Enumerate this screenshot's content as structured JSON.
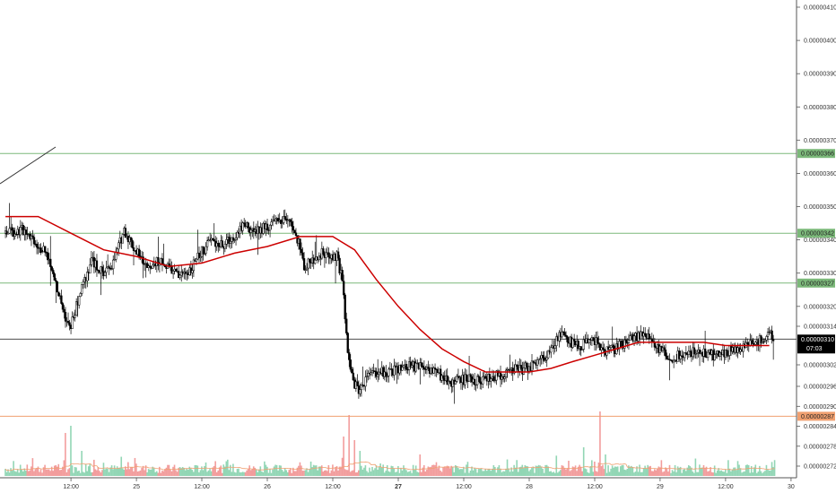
{
  "chart_data": {
    "type": "candlestick",
    "y_axis": {
      "ticks": [
        {
          "value": 410,
          "label": "0.00000410"
        },
        {
          "value": 400,
          "label": "0.00000400"
        },
        {
          "value": 390,
          "label": "0.00000390"
        },
        {
          "value": 380,
          "label": "0.00000380"
        },
        {
          "value": 370,
          "label": "0.00000370"
        },
        {
          "value": 360,
          "label": "0.00000360"
        },
        {
          "value": 350,
          "label": "0.00000350"
        },
        {
          "value": 340,
          "label": "0.00000340"
        },
        {
          "value": 330,
          "label": "0.00000330"
        },
        {
          "value": 320,
          "label": "0.00000320"
        },
        {
          "value": 314,
          "label": "0.00000314"
        },
        {
          "value": 302,
          "label": "0.00000302"
        },
        {
          "value": 296,
          "label": "0.00000296"
        },
        {
          "value": 290,
          "label": "0.00000290"
        },
        {
          "value": 284,
          "label": "0.00000284"
        },
        {
          "value": 278,
          "label": "0.00000278"
        },
        {
          "value": 272,
          "label": "0.00000272"
        }
      ],
      "unit_note": "values in units of 1e-8"
    },
    "x_axis": {
      "ticks": [
        {
          "t": 12,
          "label": "12:00",
          "bold": false
        },
        {
          "t": 24,
          "label": "25",
          "bold": false
        },
        {
          "t": 36,
          "label": "12:00",
          "bold": false
        },
        {
          "t": 48,
          "label": "26",
          "bold": false
        },
        {
          "t": 60,
          "label": "12:00",
          "bold": false
        },
        {
          "t": 72,
          "label": "27",
          "bold": true
        },
        {
          "t": 84,
          "label": "12:00",
          "bold": false
        },
        {
          "t": 96,
          "label": "28",
          "bold": false
        },
        {
          "t": 108,
          "label": "12:00",
          "bold": false
        },
        {
          "t": 120,
          "label": "29",
          "bold": false
        },
        {
          "t": 132,
          "label": "12:00",
          "bold": false
        },
        {
          "t": 144,
          "label": "30",
          "bold": false
        }
      ],
      "range": [
        0,
        144
      ]
    },
    "price_path": [
      [
        0,
        342
      ],
      [
        4,
        343
      ],
      [
        8,
        335
      ],
      [
        11,
        318
      ],
      [
        12,
        313
      ],
      [
        14,
        324
      ],
      [
        16,
        334
      ],
      [
        18,
        330
      ],
      [
        20,
        333
      ],
      [
        22,
        343
      ],
      [
        24,
        337
      ],
      [
        26,
        332
      ],
      [
        28,
        334
      ],
      [
        30,
        332
      ],
      [
        32,
        329
      ],
      [
        34,
        331
      ],
      [
        36,
        336
      ],
      [
        38,
        340
      ],
      [
        40,
        338
      ],
      [
        42,
        341
      ],
      [
        44,
        345
      ],
      [
        46,
        342
      ],
      [
        48,
        344
      ],
      [
        50,
        345
      ],
      [
        52,
        346
      ],
      [
        54,
        339
      ],
      [
        55,
        332
      ],
      [
        58,
        336
      ],
      [
        61,
        335
      ],
      [
        62,
        328
      ],
      [
        63,
        305
      ],
      [
        64,
        297
      ],
      [
        65,
        295
      ],
      [
        67,
        299
      ],
      [
        70,
        300
      ],
      [
        73,
        301
      ],
      [
        76,
        302
      ],
      [
        78,
        301
      ],
      [
        80,
        299
      ],
      [
        82,
        297
      ],
      [
        85,
        298
      ],
      [
        88,
        298
      ],
      [
        91,
        299
      ],
      [
        94,
        301
      ],
      [
        96,
        301
      ],
      [
        98,
        303
      ],
      [
        100,
        306
      ],
      [
        102,
        312
      ],
      [
        104,
        309
      ],
      [
        106,
        308
      ],
      [
        108,
        310
      ],
      [
        110,
        306
      ],
      [
        112,
        307
      ],
      [
        114,
        309
      ],
      [
        116,
        311
      ],
      [
        118,
        311
      ],
      [
        120,
        307
      ],
      [
        122,
        304
      ],
      [
        124,
        305
      ],
      [
        126,
        306
      ],
      [
        128,
        306
      ],
      [
        130,
        305
      ],
      [
        132,
        306
      ],
      [
        134,
        307
      ],
      [
        136,
        308
      ],
      [
        138,
        309
      ],
      [
        140,
        311
      ]
    ],
    "moving_average": [
      [
        0,
        347
      ],
      [
        6,
        347
      ],
      [
        12,
        342
      ],
      [
        18,
        337
      ],
      [
        24,
        335
      ],
      [
        30,
        332
      ],
      [
        36,
        333
      ],
      [
        42,
        336
      ],
      [
        48,
        338
      ],
      [
        54,
        341
      ],
      [
        60,
        341
      ],
      [
        64,
        337
      ],
      [
        68,
        328
      ],
      [
        72,
        320
      ],
      [
        76,
        313
      ],
      [
        80,
        307
      ],
      [
        84,
        303
      ],
      [
        88,
        300
      ],
      [
        92,
        300
      ],
      [
        96,
        300
      ],
      [
        100,
        301
      ],
      [
        104,
        303
      ],
      [
        108,
        305
      ],
      [
        112,
        307
      ],
      [
        116,
        309
      ],
      [
        120,
        309
      ],
      [
        124,
        309
      ],
      [
        128,
        309
      ],
      [
        132,
        308
      ],
      [
        136,
        308
      ],
      [
        140,
        308
      ]
    ],
    "volume_spikes": [
      {
        "t": 11,
        "v": 0.6
      },
      {
        "t": 12,
        "v": 0.7
      },
      {
        "t": 14,
        "v": 0.35
      },
      {
        "t": 62,
        "v": 0.55
      },
      {
        "t": 63,
        "v": 0.85
      },
      {
        "t": 64,
        "v": 0.5
      },
      {
        "t": 65,
        "v": 0.35
      },
      {
        "t": 76,
        "v": 0.3
      },
      {
        "t": 106,
        "v": 0.4
      },
      {
        "t": 109,
        "v": 0.9
      },
      {
        "t": 110,
        "v": 0.3
      }
    ],
    "horizontal_levels": [
      {
        "value": 366,
        "label": "0.00000366",
        "color": "#7cb97a"
      },
      {
        "value": 342,
        "label": "0.00000342",
        "color": "#7cb97a"
      },
      {
        "value": 327,
        "label": "0.00000327",
        "color": "#7cb97a"
      },
      {
        "value": 287,
        "label": "0.00000287",
        "color": "#f0a070"
      }
    ],
    "current_price": {
      "value": 310,
      "label": "0.00000310",
      "countdown": "07:03"
    },
    "colors": {
      "up": "#ffffff",
      "down": "#000000",
      "wick": "#000000",
      "moving_average": "#cc0000",
      "volume_up": "#7fcfa8",
      "volume_down": "#f08c8c",
      "volume_ma": "#f0a070",
      "support": "#7cb97a",
      "support_label_text": "#222222",
      "orange_level": "#f0a070",
      "current_price_line": "#333333",
      "current_price_tag": "#000000"
    }
  }
}
